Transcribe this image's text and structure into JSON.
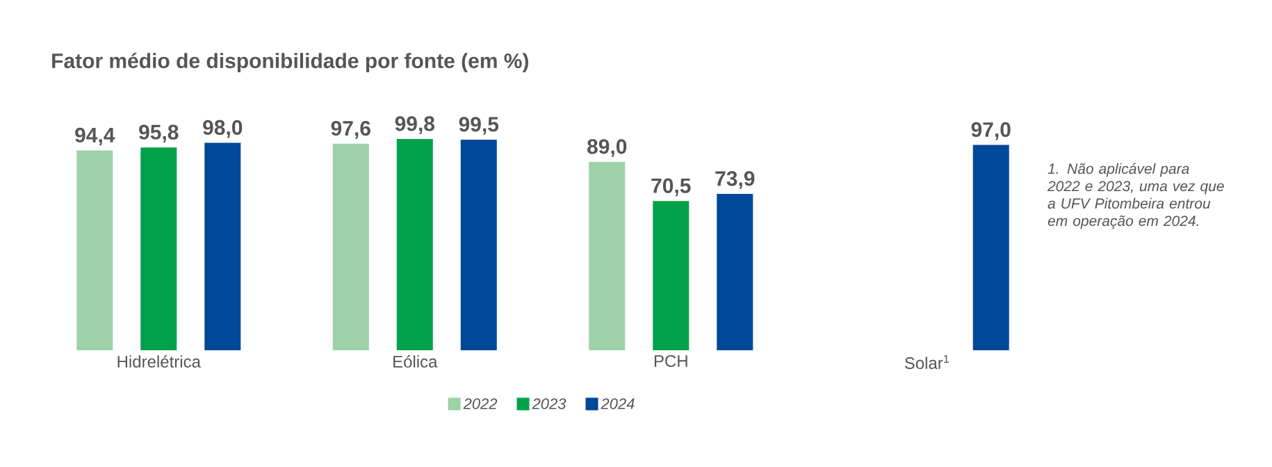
{
  "chart_data": {
    "type": "bar",
    "title": "Fator médio de disponibilidade por fonte (em %)",
    "categories": [
      "Hidrelétrica",
      "Eólica",
      "PCH",
      "Solar$^{1}$"
    ],
    "series": [
      {
        "name": "2022",
        "color": "#9dd1a7",
        "values": [
          94.4,
          97.6,
          89.0,
          null
        ],
        "value_labels": [
          "94,4",
          "97,6",
          "89,0",
          null
        ]
      },
      {
        "name": "2023",
        "color": "#00a14b",
        "values": [
          95.8,
          99.8,
          70.5,
          null
        ],
        "value_labels": [
          "95,8",
          "99,8",
          "70,5",
          null
        ]
      },
      {
        "name": "2024",
        "color": "#004899",
        "values": [
          98.0,
          99.5,
          73.9,
          97.0
        ],
        "value_labels": [
          "98,0",
          "99,5",
          "73,9",
          "97,0"
        ]
      }
    ],
    "legend": "bottom",
    "annotations": [
      "1. Não aplicável para 2022 e 2023, uma vez que a UFV Pitombeira entrou em operação em 2024."
    ]
  }
}
